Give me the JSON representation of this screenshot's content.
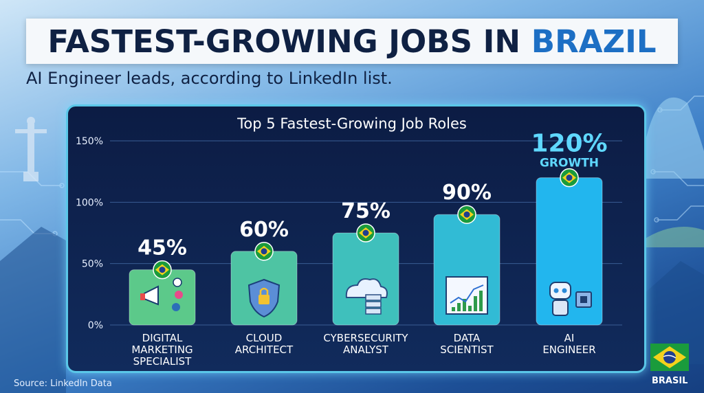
{
  "header": {
    "title_main": "FASTEST-GROWING JOBS IN",
    "title_accent": "BRAZIL",
    "subtitle": "AI Engineer leads, according to LinkedIn list."
  },
  "footer": {
    "source": "Source: LinkedIn Data",
    "flag_label": "BRASIL"
  },
  "colors": {
    "title_text": "#0f2143",
    "title_accent": "#1d6fc4",
    "panel_border": "#5ac7e8",
    "bar_low": "#5cc98a",
    "bar_high": "#22b6ee",
    "flag_green": "#1a9b3c",
    "flag_yellow": "#f2d21c",
    "flag_blue": "#1f3f8f"
  },
  "chart_data": {
    "type": "bar",
    "title": "Top 5 Fastest-Growing Job Roles",
    "categories": [
      [
        "DIGITAL",
        "MARKETING",
        "SPECIALIST"
      ],
      [
        "CLOUD",
        "ARCHITECT"
      ],
      [
        "CYBERSECURITY",
        "ANALYST"
      ],
      [
        "DATA",
        "SCIENTIST"
      ],
      [
        "AI",
        "ENGINEER"
      ]
    ],
    "values": [
      45,
      60,
      75,
      90,
      120
    ],
    "value_labels": [
      "45%",
      "60%",
      "75%",
      "90%",
      "120%"
    ],
    "highlight_note": "GROWTH",
    "bar_icons": [
      "megaphone-icon",
      "shield-lock-icon",
      "cloud-server-icon",
      "analytics-chart-icon",
      "robot-chip-icon"
    ],
    "yticks": [
      0,
      50,
      100,
      150
    ],
    "ytick_labels": [
      "0%",
      "50%",
      "100%",
      "150%"
    ],
    "ylim": [
      0,
      150
    ],
    "grid": true,
    "legend": "none"
  }
}
